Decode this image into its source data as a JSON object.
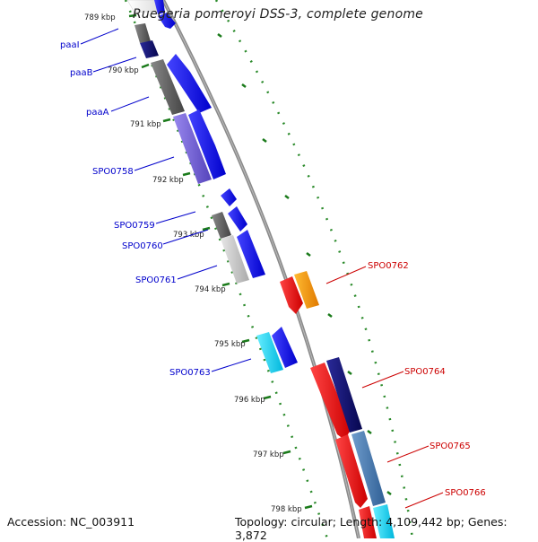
{
  "title": "Ruegeria pomeroyi DSS-3, complete genome",
  "footer": {
    "accession": "Accession: NC_003911",
    "topology": "Topology: circular; Length: 4,109,442 bp; Genes: 3,872"
  },
  "ticks": [
    "789 kbp",
    "790 kbp",
    "791 kbp",
    "792 kbp",
    "793 kbp",
    "794 kbp",
    "795 kbp",
    "796 kbp",
    "797 kbp",
    "798 kbp"
  ],
  "labels_left": [
    "paaI",
    "paaB",
    "paaA",
    "SPO0758",
    "SPO0759",
    "SPO0760",
    "SPO0761",
    "SPO0763"
  ],
  "labels_right": [
    "SPO0762",
    "SPO0764",
    "SPO0765",
    "SPO0766"
  ],
  "colors": {
    "blue_label": "#0000cc",
    "red_label": "#cc0000",
    "gene_blue": "#1a1aff",
    "gene_navy": "#0a0a7a",
    "gene_gray": "#666666",
    "gene_lightgray": "#c8c8c8",
    "gene_purple": "#7766dd",
    "gene_cyan": "#22ddff",
    "gene_red": "#ff1a1a",
    "gene_orange": "#ff9900",
    "gene_steel": "#4a7ab0",
    "dots": "#2a8a2a",
    "backbone": "#8a8a8a"
  }
}
